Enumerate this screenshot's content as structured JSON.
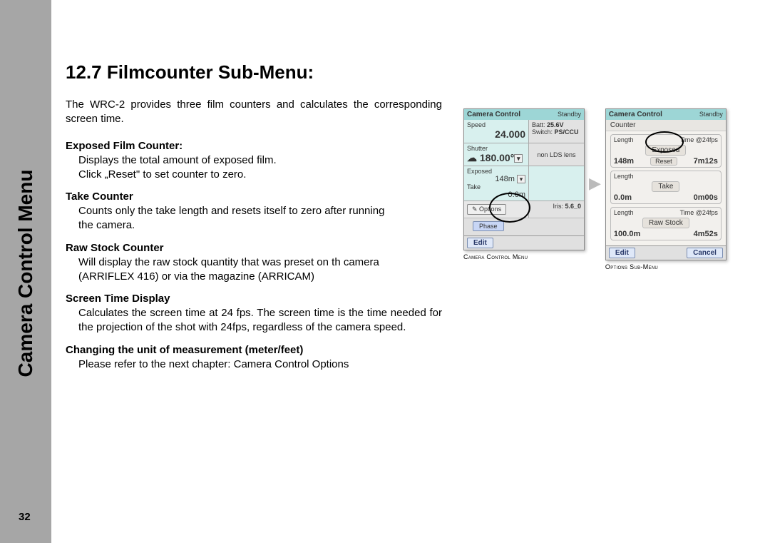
{
  "sidebar": {
    "label": "Camera Control Menu"
  },
  "page_number": "32",
  "title": "12.7 Filmcounter Sub-Menu:",
  "intro": "The WRC-2 provides three film counters and calculates the corresponding screen time.",
  "sections": [
    {
      "head": "Exposed Film Counter:",
      "body": "Displays the total amount of exposed film.\nClick „Reset\" to set counter to zero."
    },
    {
      "head": "Take Counter",
      "body": "Counts only the take length and resets itself to zero after running the camera."
    },
    {
      "head": "Raw Stock Counter",
      "body": "Will display the raw stock quantity that was preset on th camera (ARRIFLEX 416) or via the magazine (ARRICAM)"
    },
    {
      "head": "Screen Time Display",
      "body": "Calculates the screen time at 24 fps. The screen time is the time needed for the projection of the shot with 24fps, regardless of the camera speed."
    },
    {
      "head": "Changing the unit of measurement (meter/feet)",
      "body": "Please refer to the next chapter: Camera Control Options"
    }
  ],
  "dev1": {
    "title": "Camera Control",
    "status": "Standby",
    "speed_label": "Speed",
    "speed_value": "24.000",
    "batt_label": "Batt:",
    "batt_value": "25.6V",
    "switch_label": "Switch:",
    "switch_value": "PS/CCU",
    "shutter_label": "Shutter",
    "shutter_value": "180.00°",
    "lens_label": "non LDS lens",
    "exposed_label": "Exposed",
    "exposed_value": "148m",
    "take_label": "Take",
    "take_value": "0.0m",
    "options_label": "Options",
    "iris_label": "Iris:",
    "iris_value": "5.6_0",
    "phase_label": "Phase",
    "edit_label": "Edit",
    "caption": "Camera Control Menu"
  },
  "dev2": {
    "title": "Camera Control",
    "status": "Standby",
    "sub": "Counter",
    "rows": [
      {
        "len_label": "Length",
        "tab": "Exposed",
        "time_label": "Time @24fps",
        "len": "148m",
        "btn": "Reset",
        "time": "7m12s"
      },
      {
        "len_label": "Length",
        "tab": "Take",
        "time_label": "",
        "len": "0.0m",
        "btn": "",
        "time": "0m00s"
      },
      {
        "len_label": "Length",
        "tab": "Raw Stock",
        "time_label": "Time @24fps",
        "len": "100.0m",
        "btn": "",
        "time": "4m52s"
      }
    ],
    "edit_label": "Edit",
    "cancel_label": "Cancel",
    "caption": "Options Sub-Menu"
  }
}
